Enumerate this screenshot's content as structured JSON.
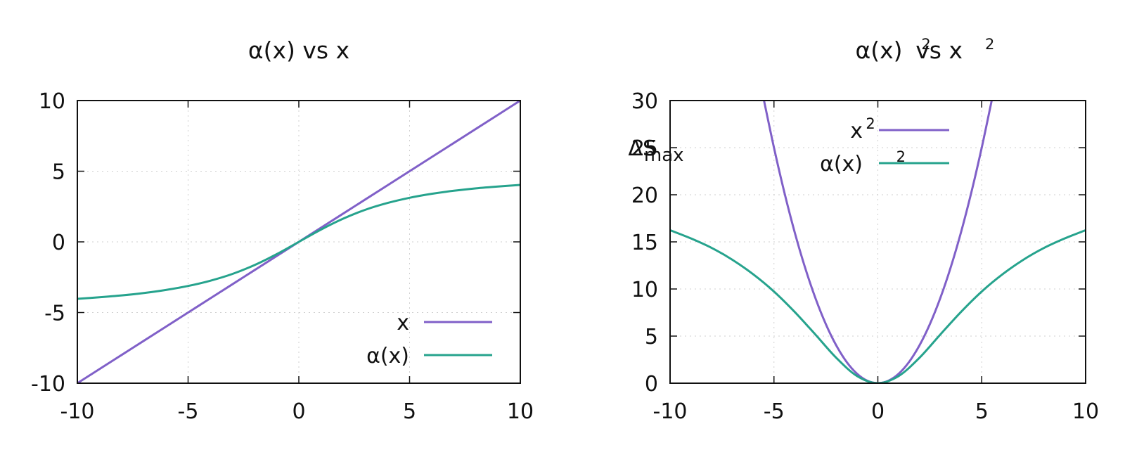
{
  "chart_data": [
    {
      "type": "line",
      "title": "α(x) vs x",
      "xlabel": "",
      "ylabel": "",
      "xlim": [
        -10,
        10
      ],
      "ylim": [
        -10,
        10
      ],
      "xticks": [
        "-10",
        "-5",
        "0",
        "5",
        "10"
      ],
      "yticks": [
        "-10",
        "-5",
        "0",
        "5",
        "10"
      ],
      "grid": true,
      "legend_position": "bottom-right",
      "series": [
        {
          "name": "x",
          "color": "#8060c8",
          "x": [
            -10,
            -9,
            -8,
            -7,
            -6,
            -5,
            -4,
            -3,
            -2,
            -1,
            0,
            1,
            2,
            3,
            4,
            5,
            6,
            7,
            8,
            9,
            10
          ],
          "y": [
            -10,
            -9,
            -8,
            -7,
            -6,
            -5,
            -4,
            -3,
            -2,
            -1,
            0,
            1,
            2,
            3,
            4,
            5,
            6,
            7,
            8,
            9,
            10
          ]
        },
        {
          "name": "α(x)",
          "color": "#26a38d",
          "x": [
            -10,
            -9,
            -8,
            -7,
            -6,
            -5,
            -4,
            -3,
            -2,
            -1,
            0,
            1,
            2,
            3,
            4,
            5,
            6,
            7,
            8,
            9,
            10
          ],
          "y": [
            -4.03,
            -3.92,
            -3.79,
            -3.62,
            -3.4,
            -3.12,
            -2.75,
            -2.27,
            -1.64,
            -0.87,
            0,
            0.87,
            1.64,
            2.27,
            2.75,
            3.12,
            3.4,
            3.62,
            3.79,
            3.92,
            4.03
          ]
        }
      ]
    },
    {
      "type": "line",
      "title": "α(x)² vs x²",
      "xlabel": "",
      "ylabel": "ΔSmax",
      "xlim": [
        -10,
        10
      ],
      "ylim": [
        0,
        30
      ],
      "xticks": [
        "-10",
        "-5",
        "0",
        "5",
        "10"
      ],
      "yticks": [
        "0",
        "5",
        "10",
        "15",
        "20",
        "25",
        "30"
      ],
      "grid": true,
      "legend_position": "top-center",
      "series": [
        {
          "name": "x²",
          "color": "#8060c8",
          "x": [
            -5.48,
            -5,
            -4.5,
            -4,
            -3.5,
            -3,
            -2.5,
            -2,
            -1.5,
            -1,
            -0.5,
            0,
            0.5,
            1,
            1.5,
            2,
            2.5,
            3,
            3.5,
            4,
            4.5,
            5,
            5.48
          ],
          "y": [
            30,
            25,
            20.25,
            16,
            12.25,
            9,
            6.25,
            4,
            2.25,
            1,
            0.25,
            0,
            0.25,
            1,
            2.25,
            4,
            6.25,
            9,
            12.25,
            16,
            20.25,
            25,
            30
          ]
        },
        {
          "name": "α(x)²",
          "color": "#26a38d",
          "x": [
            -10,
            -9,
            -8,
            -7,
            -6,
            -5,
            -4,
            -3,
            -2,
            -1,
            0,
            1,
            2,
            3,
            4,
            5,
            6,
            7,
            8,
            9,
            10
          ],
          "y": [
            16.24,
            15.37,
            14.36,
            13.1,
            11.56,
            9.73,
            7.56,
            5.15,
            2.69,
            0.76,
            0,
            0.76,
            2.69,
            5.15,
            7.56,
            9.73,
            11.56,
            13.1,
            14.36,
            15.37,
            16.24
          ]
        }
      ]
    }
  ]
}
